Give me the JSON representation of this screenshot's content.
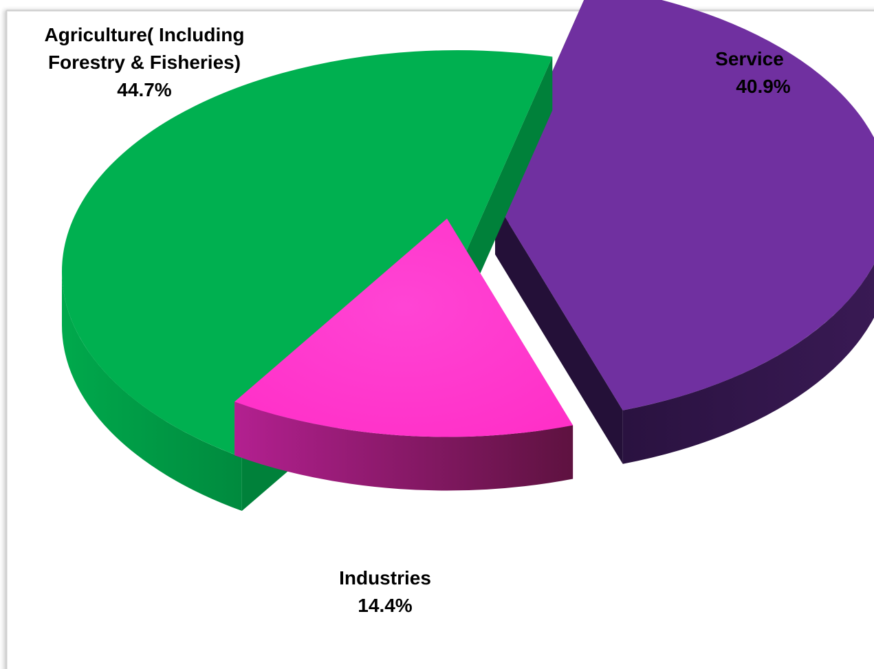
{
  "page_title_fragment": "",
  "chart_data": {
    "type": "pie",
    "title": "",
    "categories": [
      "Agriculture( Including Forestry & Fisheries)",
      "Industries",
      "Service"
    ],
    "values": [
      44.7,
      14.4,
      40.9
    ],
    "unit": "%",
    "exploded": true,
    "three_d": true,
    "legend": "none",
    "labels": [
      {
        "category_lines": [
          "Agriculture( Including",
          "Forestry & Fisheries)"
        ],
        "value_text": "44.7%"
      },
      {
        "category_lines": [
          "Industries"
        ],
        "value_text": "14.4%"
      },
      {
        "category_lines": [
          "Service"
        ],
        "value_text": "40.9%"
      }
    ],
    "colors": {
      "agriculture": "#00b050",
      "industries": "#ff33cc",
      "service": "#7030a0"
    }
  }
}
